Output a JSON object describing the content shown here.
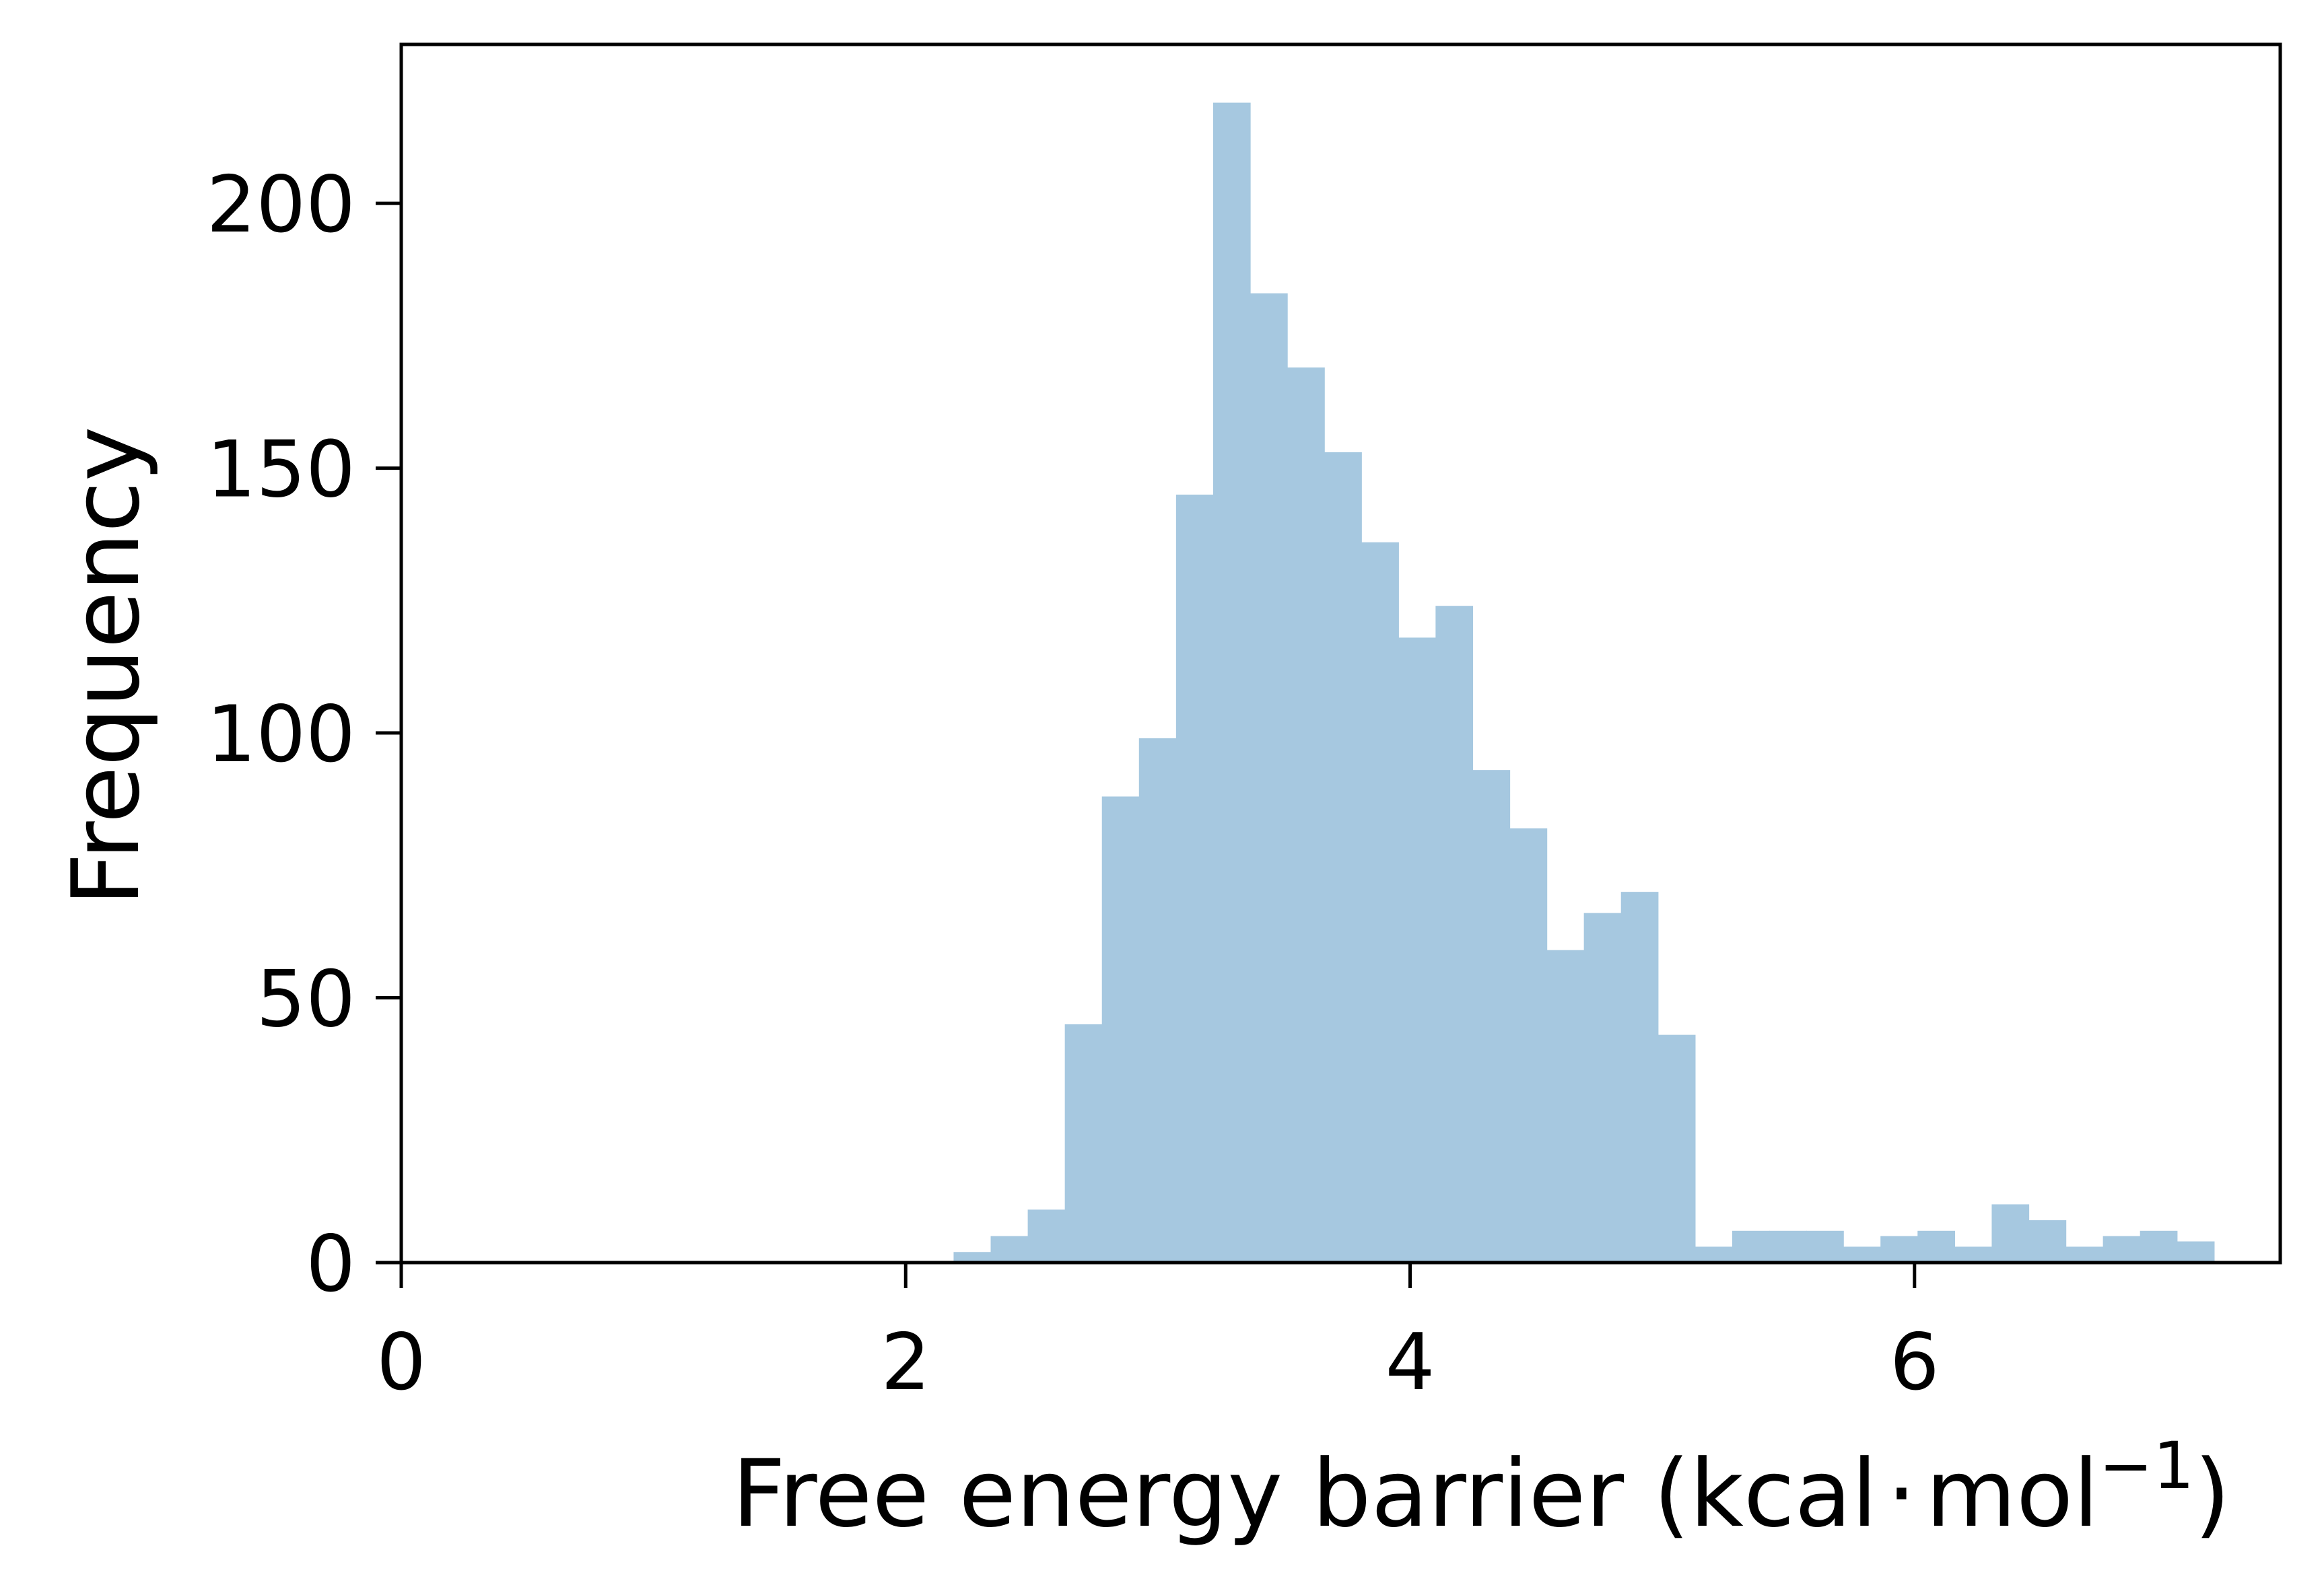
{
  "chart_data": {
    "type": "bar",
    "subtype": "histogram",
    "xlabel_main": "Free energy barrier (kcal",
    "xlabel_dot": "·",
    "xlabel_unit": "mol",
    "xlabel_sup": "−1",
    "xlabel_close": ")",
    "ylabel": "Frequency",
    "xlim": [
      0,
      7.45
    ],
    "ylim": [
      0,
      230
    ],
    "xticks": [
      0,
      2,
      4,
      6
    ],
    "yticks": [
      0,
      50,
      100,
      150,
      200
    ],
    "bar_color": "#a6c8e0",
    "grid": false,
    "bin_width": 0.1471,
    "bins": [
      {
        "x0": 2.19,
        "value": 2
      },
      {
        "x0": 2.337,
        "value": 5
      },
      {
        "x0": 2.484,
        "value": 10
      },
      {
        "x0": 2.631,
        "value": 45
      },
      {
        "x0": 2.778,
        "value": 88
      },
      {
        "x0": 2.925,
        "value": 99
      },
      {
        "x0": 3.072,
        "value": 145
      },
      {
        "x0": 3.219,
        "value": 219
      },
      {
        "x0": 3.366,
        "value": 183
      },
      {
        "x0": 3.513,
        "value": 169
      },
      {
        "x0": 3.66,
        "value": 153
      },
      {
        "x0": 3.807,
        "value": 136
      },
      {
        "x0": 3.954,
        "value": 118
      },
      {
        "x0": 4.101,
        "value": 124
      },
      {
        "x0": 4.248,
        "value": 93
      },
      {
        "x0": 4.395,
        "value": 82
      },
      {
        "x0": 4.542,
        "value": 59
      },
      {
        "x0": 4.689,
        "value": 66
      },
      {
        "x0": 4.836,
        "value": 70
      },
      {
        "x0": 4.983,
        "value": 43
      },
      {
        "x0": 5.13,
        "value": 3
      },
      {
        "x0": 5.277,
        "value": 6
      },
      {
        "x0": 5.424,
        "value": 6
      },
      {
        "x0": 5.571,
        "value": 6
      },
      {
        "x0": 5.718,
        "value": 3
      },
      {
        "x0": 5.865,
        "value": 5
      },
      {
        "x0": 6.012,
        "value": 6
      },
      {
        "x0": 6.159,
        "value": 3
      },
      {
        "x0": 6.306,
        "value": 11
      },
      {
        "x0": 6.453,
        "value": 8
      },
      {
        "x0": 6.6,
        "value": 3
      },
      {
        "x0": 6.747,
        "value": 5
      },
      {
        "x0": 6.894,
        "value": 6
      },
      {
        "x0": 7.041,
        "value": 4
      }
    ]
  }
}
